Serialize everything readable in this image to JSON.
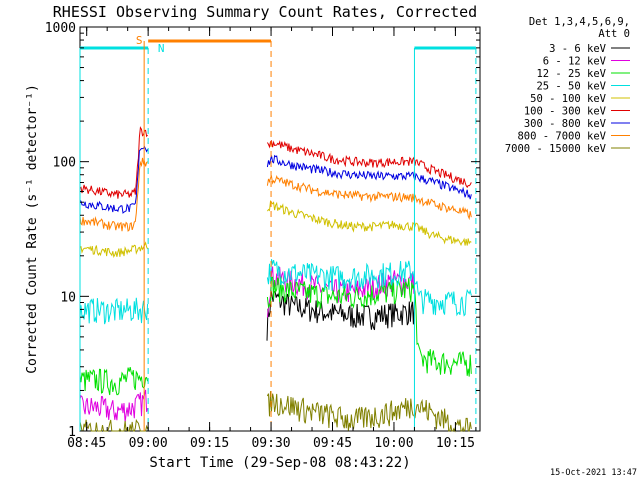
{
  "chart_data": {
    "type": "line",
    "title": "RHESSI Observing Summary Count Rates, Corrected",
    "xlabel": "Start Time (29-Sep-08 08:43:22)",
    "ylabel": "Corrected Count Rate (s⁻¹ detector⁻¹)",
    "x_ticks": [
      "08:45",
      "09:00",
      "09:15",
      "09:30",
      "09:45",
      "10:00",
      "10:15"
    ],
    "y_ticks": [
      "1",
      "10",
      "100",
      "1000"
    ],
    "y_scale": "log",
    "ylim": [
      1,
      1000
    ],
    "xlim": [
      "08:43:22",
      "10:21:00"
    ],
    "legend_header": [
      "Det 1,3,4,5,6,9,",
      "Att 0"
    ],
    "legend_placement": "right",
    "timestamp": "15-Oct-2021 13:47",
    "annotations": [
      {
        "label": "S",
        "start": "09:00",
        "end": "09:30",
        "color": "#ff8000"
      },
      {
        "label": "N",
        "start": "09:00",
        "end": "09:00",
        "color": "#00e0e0"
      }
    ],
    "night_intervals": [
      {
        "start": "08:43:22",
        "end": "09:00",
        "color": "#00e0e0"
      },
      {
        "start": "10:05",
        "end": "10:20",
        "color": "#00e0e0"
      }
    ],
    "data_gaps": [
      {
        "start": "09:00",
        "end": "09:29"
      },
      {
        "start": "10:19",
        "end": "10:21"
      }
    ],
    "series": [
      {
        "name": "3 - 6 keV",
        "color": "#000000",
        "x": [
          "09:29",
          "09:30",
          "09:35",
          "09:40",
          "09:45",
          "09:50",
          "09:55",
          "10:00",
          "10:05"
        ],
        "values": [
          6,
          10,
          8.5,
          8,
          7.5,
          7.2,
          7.2,
          7.5,
          7.8
        ]
      },
      {
        "name": "6 - 12 keV",
        "color": "#e000e0",
        "x": [
          "08:43:22",
          "08:48",
          "08:52",
          "08:56",
          "08:58",
          "09:29",
          "09:30",
          "09:35",
          "09:40",
          "09:45",
          "09:50",
          "09:55",
          "10:00",
          "10:05"
        ],
        "values": [
          1.5,
          1.5,
          1.4,
          1.5,
          1.6,
          8,
          14,
          13,
          12,
          11,
          11,
          12,
          13,
          13
        ]
      },
      {
        "name": "12 - 25 keV",
        "color": "#00e000",
        "x": [
          "08:43:22",
          "08:48",
          "08:52",
          "08:56",
          "08:58",
          "09:29",
          "09:30",
          "09:35",
          "09:40",
          "09:45",
          "09:50",
          "09:55",
          "10:00",
          "10:05",
          "10:06",
          "10:10",
          "10:15",
          "10:19"
        ],
        "values": [
          2.4,
          2.4,
          2.3,
          2.5,
          2.5,
          9,
          12,
          11,
          10.5,
          10,
          10,
          10.5,
          11,
          11.5,
          3.5,
          3.3,
          3.2,
          3.2
        ]
      },
      {
        "name": "25 - 50 keV",
        "color": "#00e0e0",
        "x": [
          "08:43:22",
          "08:48",
          "08:52",
          "08:56",
          "08:58",
          "09:29",
          "09:30",
          "09:35",
          "09:40",
          "09:45",
          "09:50",
          "09:55",
          "10:00",
          "10:05",
          "10:06",
          "10:10",
          "10:15",
          "10:19"
        ],
        "values": [
          8,
          8,
          7.8,
          8,
          8,
          14,
          16,
          15,
          14.5,
          14,
          14,
          14.5,
          15,
          15.5,
          9.5,
          9.3,
          9.2,
          9.2
        ]
      },
      {
        "name": "50 - 100 keV",
        "color": "#d0c000",
        "x": [
          "08:43:22",
          "08:48",
          "08:52",
          "08:56",
          "08:58",
          "09:29",
          "09:30",
          "09:35",
          "09:40",
          "09:45",
          "09:50",
          "09:55",
          "10:00",
          "10:05",
          "10:10",
          "10:15",
          "10:19"
        ],
        "values": [
          23,
          22,
          21,
          22,
          23,
          45,
          48,
          42,
          38,
          35,
          33,
          33,
          34,
          33,
          28,
          26,
          25
        ]
      },
      {
        "name": "100 - 300 keV",
        "color": "#e00000",
        "x": [
          "08:43:22",
          "08:48",
          "08:52",
          "08:56",
          "08:57",
          "08:58",
          "09:29",
          "09:30",
          "09:35",
          "09:40",
          "09:45",
          "09:50",
          "09:55",
          "10:00",
          "10:05",
          "10:10",
          "10:15",
          "10:19"
        ],
        "values": [
          64,
          60,
          57,
          57,
          60,
          170,
          130,
          140,
          125,
          115,
          105,
          100,
          98,
          100,
          100,
          85,
          75,
          68
        ]
      },
      {
        "name": "300 - 800 keV",
        "color": "#0000e0",
        "x": [
          "08:43:22",
          "08:48",
          "08:52",
          "08:56",
          "08:57",
          "08:58",
          "09:29",
          "09:30",
          "09:35",
          "09:40",
          "09:45",
          "09:50",
          "09:55",
          "10:00",
          "10:05",
          "10:10",
          "10:15",
          "10:19"
        ],
        "values": [
          50,
          47,
          45,
          45,
          48,
          130,
          95,
          105,
          95,
          88,
          83,
          80,
          78,
          78,
          78,
          70,
          62,
          56
        ]
      },
      {
        "name": "800 - 7000 keV",
        "color": "#ff8000",
        "x": [
          "08:43:22",
          "08:48",
          "08:52",
          "08:56",
          "08:57",
          "08:58",
          "09:29",
          "09:30",
          "09:35",
          "09:40",
          "09:45",
          "09:50",
          "09:55",
          "10:00",
          "10:05",
          "10:10",
          "10:15",
          "10:19"
        ],
        "values": [
          37,
          35,
          33,
          33,
          36,
          100,
          70,
          75,
          68,
          62,
          58,
          56,
          55,
          55,
          54,
          48,
          44,
          40
        ]
      },
      {
        "name": "7000 - 15000 keV",
        "color": "#808000",
        "x": [
          "08:43:22",
          "08:56",
          "08:58",
          "09:29",
          "09:30",
          "09:40",
          "09:50",
          "10:00",
          "10:05",
          "10:15",
          "10:19"
        ],
        "values": [
          1,
          1,
          1,
          1.5,
          1.7,
          1.4,
          1.2,
          1.4,
          1.6,
          1.1,
          1
        ]
      }
    ]
  }
}
